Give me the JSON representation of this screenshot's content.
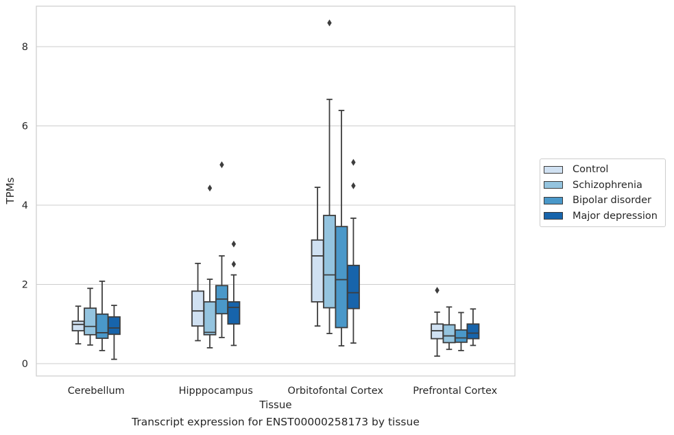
{
  "chart_data": {
    "type": "box",
    "title": "",
    "caption": "Transcript expression for ENST00000258173 by tissue",
    "xlabel": "Tissue",
    "ylabel": "TPMs",
    "ylim": [
      -0.3,
      9.0
    ],
    "yticks": [
      "0",
      "2",
      "4",
      "6",
      "8"
    ],
    "grid": "horizontal",
    "legend_position": "right",
    "categories": [
      "Cerebellum",
      "Hipppocampus",
      "Orbitofontal Cortex",
      "Prefrontal Cortex"
    ],
    "series": [
      {
        "name": "Control",
        "color": "#d0e1f2",
        "boxes": [
          {
            "min": 0.5,
            "q1": 0.83,
            "median": 0.99,
            "q3": 1.07,
            "max": 1.45,
            "outliers": []
          },
          {
            "min": 0.58,
            "q1": 0.95,
            "median": 1.33,
            "q3": 1.83,
            "max": 2.53,
            "outliers": []
          },
          {
            "min": 0.95,
            "q1": 1.56,
            "median": 2.72,
            "q3": 3.12,
            "max": 4.45,
            "outliers": []
          },
          {
            "min": 0.19,
            "q1": 0.63,
            "median": 0.83,
            "q3": 1.0,
            "max": 1.3,
            "outliers": [
              1.85
            ]
          }
        ]
      },
      {
        "name": "Schizophrenia",
        "color": "#94c4df",
        "boxes": [
          {
            "min": 0.47,
            "q1": 0.73,
            "median": 0.94,
            "q3": 1.4,
            "max": 1.9,
            "outliers": []
          },
          {
            "min": 0.4,
            "q1": 0.73,
            "median": 0.79,
            "q3": 1.56,
            "max": 2.13,
            "outliers": [
              4.43
            ]
          },
          {
            "min": 0.76,
            "q1": 1.41,
            "median": 2.24,
            "q3": 3.74,
            "max": 6.67,
            "outliers": [
              8.6
            ]
          },
          {
            "min": 0.36,
            "q1": 0.53,
            "median": 0.7,
            "q3": 0.98,
            "max": 1.43,
            "outliers": []
          }
        ]
      },
      {
        "name": "Bipolar disorder",
        "color": "#4a98c9",
        "boxes": [
          {
            "min": 0.33,
            "q1": 0.64,
            "median": 0.78,
            "q3": 1.25,
            "max": 2.08,
            "outliers": []
          },
          {
            "min": 0.66,
            "q1": 1.26,
            "median": 1.63,
            "q3": 1.97,
            "max": 2.72,
            "outliers": [
              5.02
            ]
          },
          {
            "min": 0.45,
            "q1": 0.91,
            "median": 2.12,
            "q3": 3.46,
            "max": 6.39,
            "outliers": []
          },
          {
            "min": 0.33,
            "q1": 0.54,
            "median": 0.65,
            "q3": 0.85,
            "max": 1.29,
            "outliers": []
          }
        ]
      },
      {
        "name": "Major depression",
        "color": "#1764ab",
        "boxes": [
          {
            "min": 0.11,
            "q1": 0.74,
            "median": 0.9,
            "q3": 1.18,
            "max": 1.47,
            "outliers": []
          },
          {
            "min": 0.46,
            "q1": 1.0,
            "median": 1.42,
            "q3": 1.56,
            "max": 2.24,
            "outliers": [
              2.51,
              3.02
            ]
          },
          {
            "min": 0.52,
            "q1": 1.39,
            "median": 1.79,
            "q3": 2.48,
            "max": 3.67,
            "outliers": [
              4.49,
              5.08
            ]
          },
          {
            "min": 0.46,
            "q1": 0.63,
            "median": 0.77,
            "q3": 1.0,
            "max": 1.38,
            "outliers": []
          }
        ]
      }
    ]
  }
}
